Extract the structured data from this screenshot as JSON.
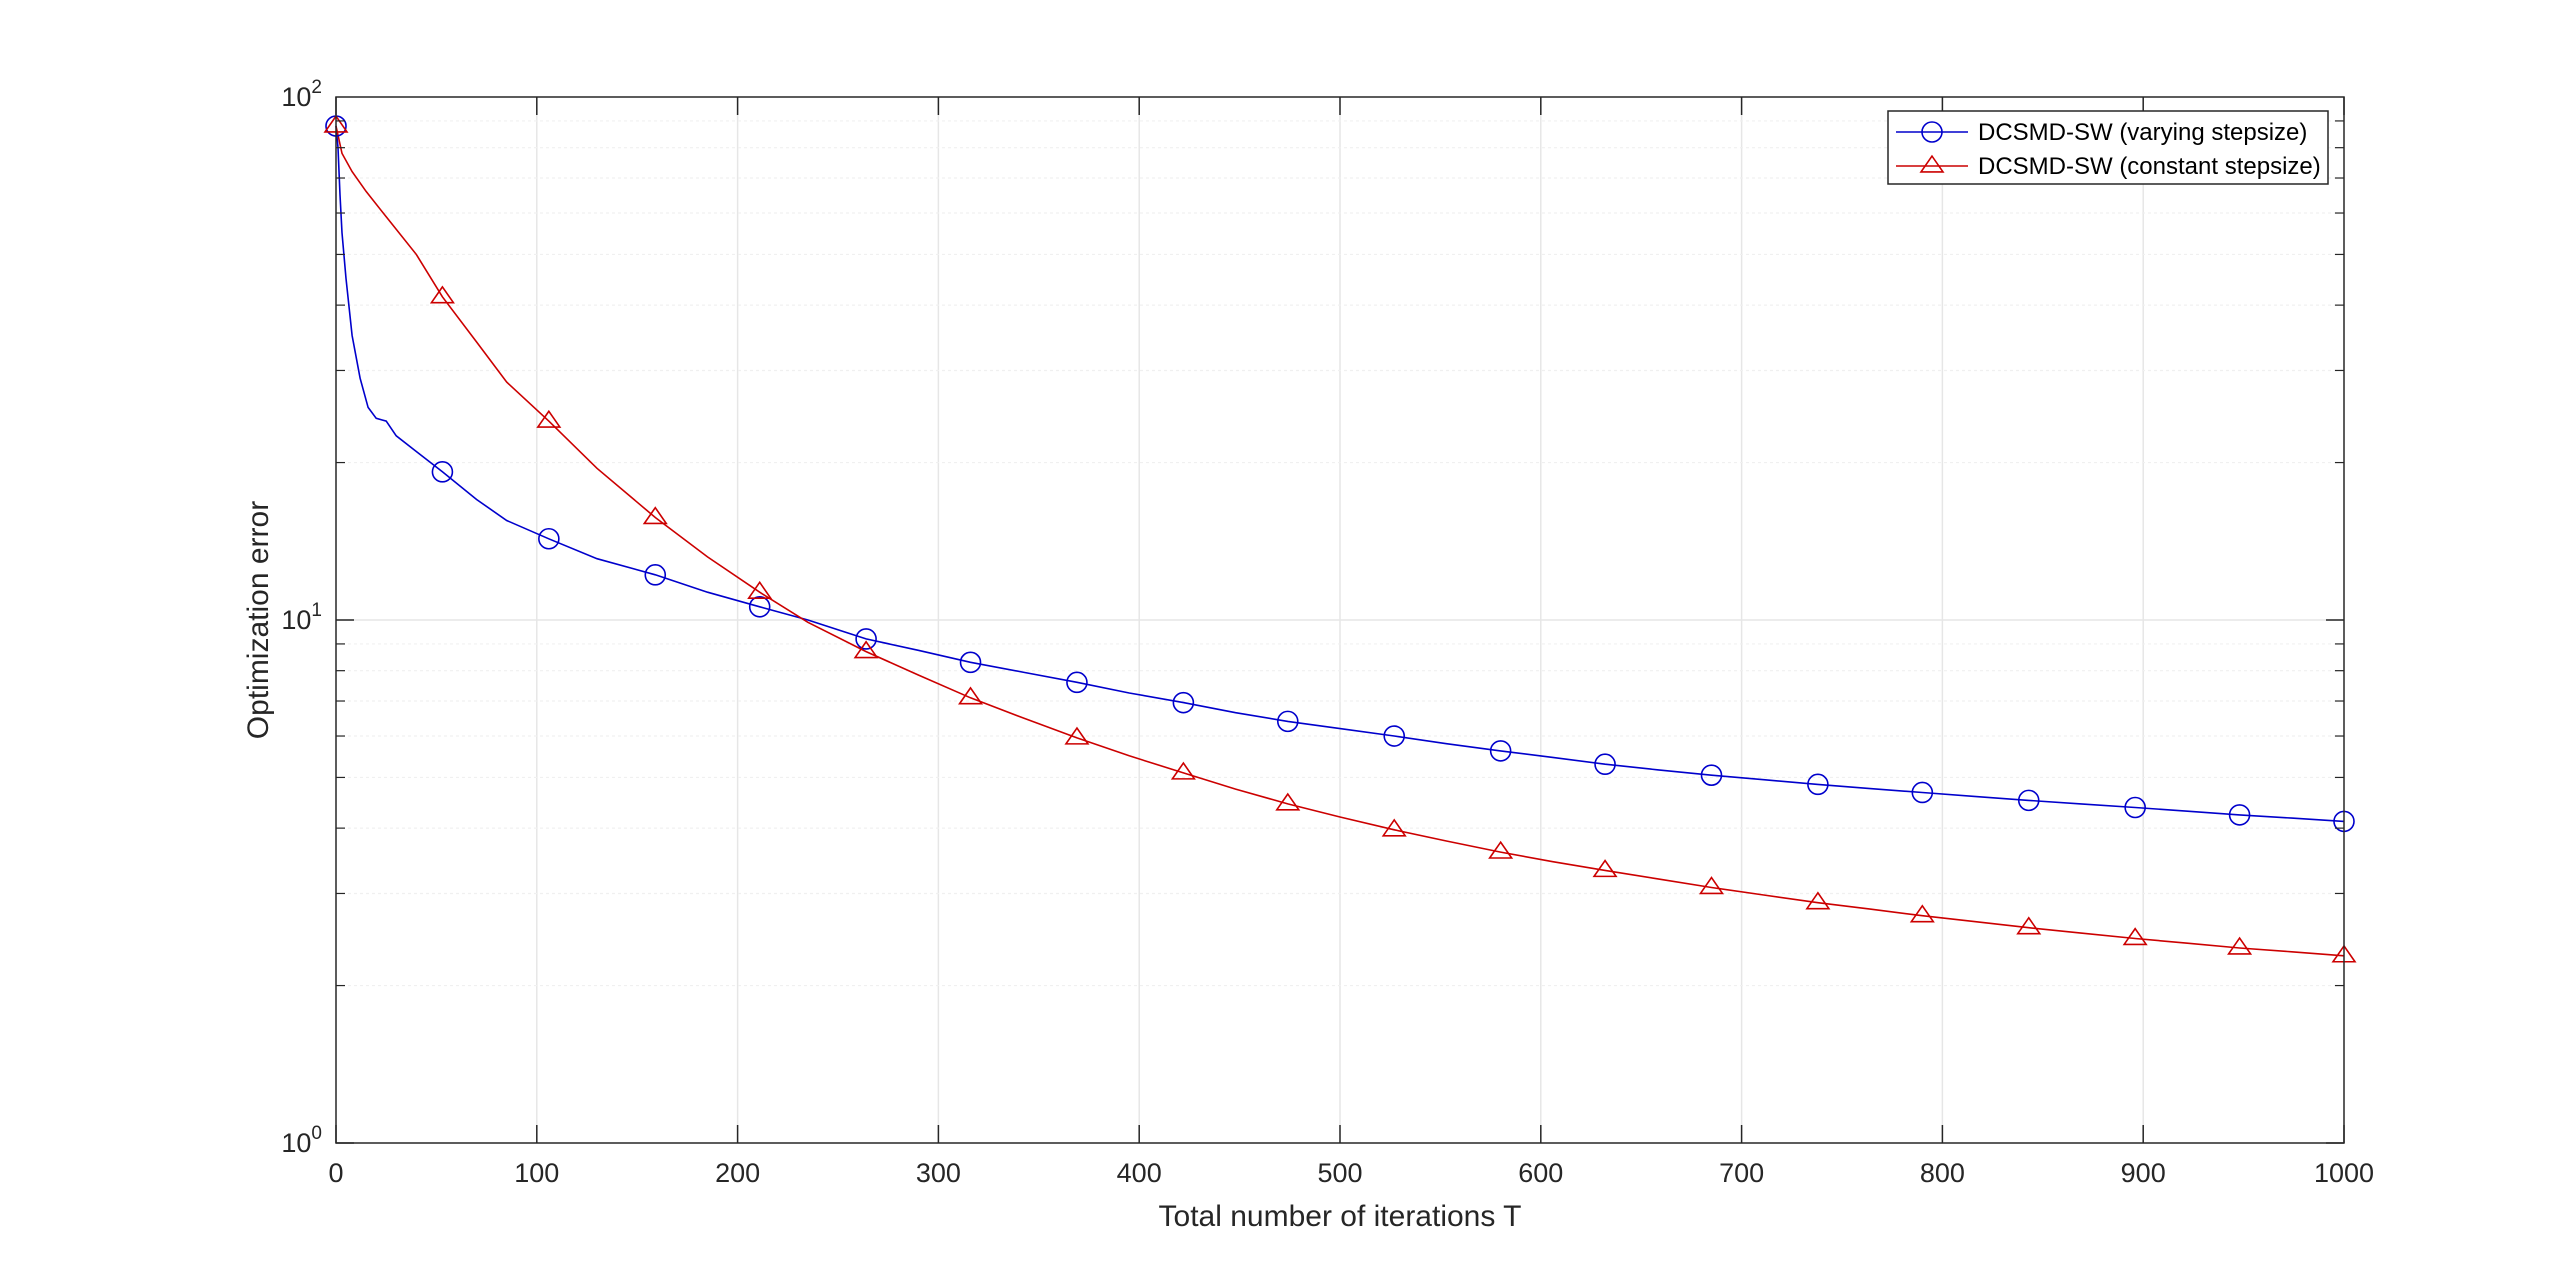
{
  "chart_data": {
    "type": "line",
    "xlabel": "Total number of iterations T",
    "ylabel": "Optimization error",
    "xlim": [
      0,
      1000
    ],
    "ylim": [
      1,
      100
    ],
    "yscale": "log",
    "grid": true,
    "legend_position": "top-right",
    "x_ticks": [
      "0",
      "100",
      "200",
      "300",
      "400",
      "500",
      "600",
      "700",
      "800",
      "900",
      "1000"
    ],
    "y_ticks": [
      {
        "base": "10",
        "exp": "0"
      },
      {
        "base": "10",
        "exp": "1"
      },
      {
        "base": "10",
        "exp": "2"
      }
    ],
    "series": [
      {
        "name": "DCSMD-SW (varying stepsize)",
        "color": "#0000cc",
        "marker": "circle",
        "points": [
          [
            0,
            88
          ],
          [
            1,
            80
          ],
          [
            2,
            65
          ],
          [
            3,
            55
          ],
          [
            5,
            45
          ],
          [
            8,
            35
          ],
          [
            12,
            29
          ],
          [
            16,
            25.5
          ],
          [
            20,
            24.3
          ],
          [
            25,
            24
          ],
          [
            30,
            22.5
          ],
          [
            40,
            21
          ],
          [
            53,
            19.2
          ],
          [
            70,
            17
          ],
          [
            85,
            15.5
          ],
          [
            106,
            14.3
          ],
          [
            130,
            13.1
          ],
          [
            159,
            12.2
          ],
          [
            185,
            11.3
          ],
          [
            211,
            10.6
          ],
          [
            235,
            10.0
          ],
          [
            264,
            9.2
          ],
          [
            290,
            8.75
          ],
          [
            316,
            8.3
          ],
          [
            342,
            7.95
          ],
          [
            369,
            7.6
          ],
          [
            395,
            7.25
          ],
          [
            422,
            6.95
          ],
          [
            448,
            6.65
          ],
          [
            474,
            6.4
          ],
          [
            500,
            6.2
          ],
          [
            527,
            6.0
          ],
          [
            553,
            5.8
          ],
          [
            580,
            5.62
          ],
          [
            606,
            5.46
          ],
          [
            632,
            5.3
          ],
          [
            658,
            5.17
          ],
          [
            685,
            5.05
          ],
          [
            711,
            4.95
          ],
          [
            738,
            4.85
          ],
          [
            764,
            4.76
          ],
          [
            790,
            4.68
          ],
          [
            816,
            4.6
          ],
          [
            843,
            4.52
          ],
          [
            869,
            4.45
          ],
          [
            896,
            4.38
          ],
          [
            922,
            4.31
          ],
          [
            948,
            4.24
          ],
          [
            974,
            4.18
          ],
          [
            1000,
            4.12
          ]
        ],
        "marker_x": [
          0,
          53,
          106,
          159,
          211,
          264,
          316,
          369,
          422,
          474,
          527,
          580,
          632,
          685,
          738,
          790,
          843,
          896,
          948,
          1000
        ],
        "marker_y": [
          88,
          19.2,
          14.3,
          12.2,
          10.6,
          9.2,
          8.3,
          7.6,
          6.95,
          6.4,
          6.0,
          5.62,
          5.3,
          5.05,
          4.85,
          4.68,
          4.52,
          4.38,
          4.24,
          4.12
        ]
      },
      {
        "name": "DCSMD-SW (constant stepsize)",
        "color": "#cc0000",
        "marker": "triangle",
        "points": [
          [
            0,
            88
          ],
          [
            3,
            78
          ],
          [
            8,
            72
          ],
          [
            15,
            66
          ],
          [
            25,
            59
          ],
          [
            40,
            50
          ],
          [
            53,
            41.5
          ],
          [
            70,
            34
          ],
          [
            85,
            28.5
          ],
          [
            106,
            24
          ],
          [
            130,
            19.5
          ],
          [
            159,
            15.7
          ],
          [
            185,
            13.2
          ],
          [
            211,
            11.3
          ],
          [
            235,
            9.9
          ],
          [
            264,
            8.7
          ],
          [
            290,
            7.85
          ],
          [
            316,
            7.1
          ],
          [
            342,
            6.5
          ],
          [
            369,
            5.95
          ],
          [
            395,
            5.5
          ],
          [
            422,
            5.1
          ],
          [
            448,
            4.75
          ],
          [
            474,
            4.45
          ],
          [
            500,
            4.2
          ],
          [
            527,
            3.97
          ],
          [
            553,
            3.78
          ],
          [
            580,
            3.6
          ],
          [
            606,
            3.45
          ],
          [
            632,
            3.32
          ],
          [
            658,
            3.2
          ],
          [
            685,
            3.08
          ],
          [
            711,
            2.98
          ],
          [
            738,
            2.88
          ],
          [
            764,
            2.8
          ],
          [
            790,
            2.72
          ],
          [
            816,
            2.65
          ],
          [
            843,
            2.58
          ],
          [
            869,
            2.52
          ],
          [
            896,
            2.46
          ],
          [
            922,
            2.41
          ],
          [
            948,
            2.36
          ],
          [
            974,
            2.32
          ],
          [
            1000,
            2.28
          ]
        ],
        "marker_x": [
          0,
          53,
          106,
          159,
          211,
          264,
          316,
          369,
          422,
          474,
          527,
          580,
          632,
          685,
          738,
          790,
          843,
          896,
          948,
          1000
        ],
        "marker_y": [
          88,
          41.5,
          24,
          15.7,
          11.3,
          8.7,
          7.1,
          5.95,
          5.1,
          4.45,
          3.97,
          3.6,
          3.32,
          3.08,
          2.88,
          2.72,
          2.58,
          2.46,
          2.36,
          2.28
        ]
      }
    ]
  }
}
